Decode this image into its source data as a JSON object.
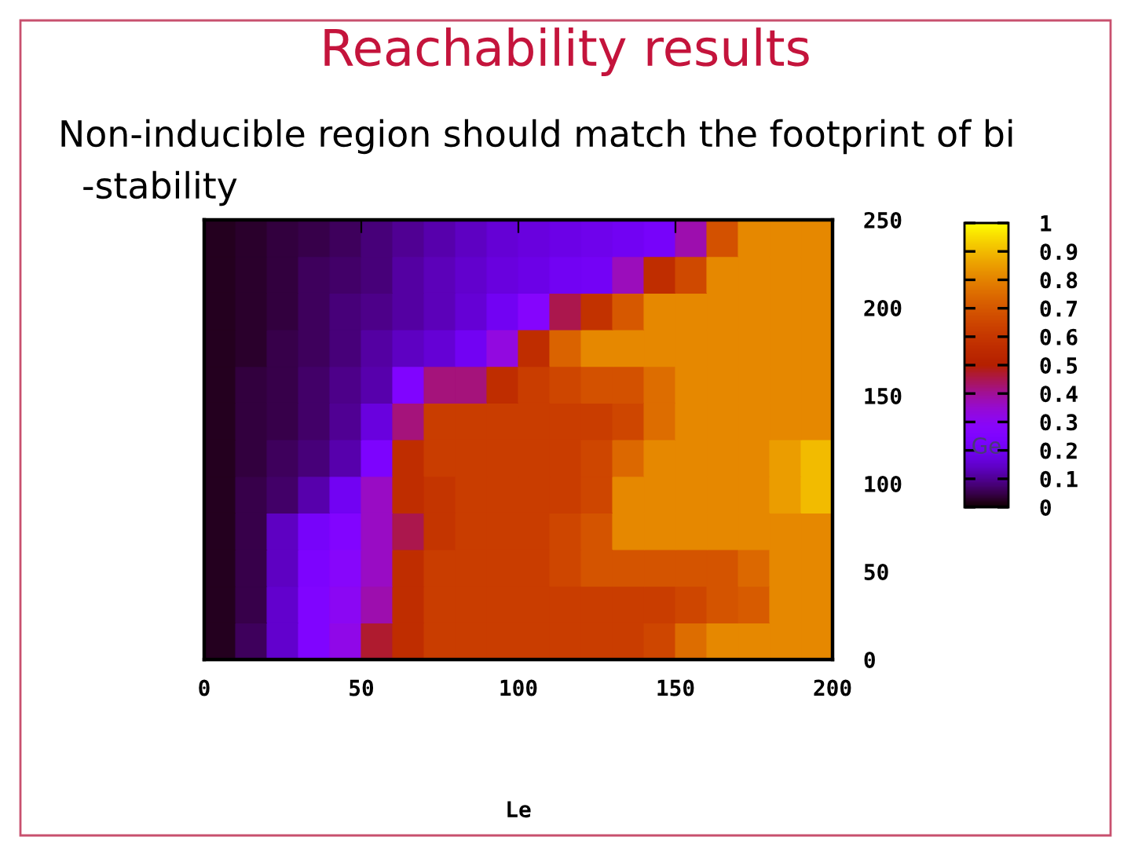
{
  "chart_data": {
    "type": "heatmap",
    "title": "Reachability results",
    "subtitle": "Non-inducible region should match the footprint of bi\n-stability",
    "xlabel": "Le",
    "clabel": "Ge",
    "x": [
      5,
      15,
      25,
      35,
      45,
      55,
      65,
      75,
      85,
      95,
      105,
      115,
      125,
      135,
      145,
      155,
      165,
      175,
      185,
      195
    ],
    "cells": [
      [
        0.02,
        0.03,
        0.04,
        0.05,
        0.06,
        0.08,
        0.1,
        0.12,
        0.14,
        0.16,
        0.17,
        0.18,
        0.19,
        0.2,
        0.22,
        0.38,
        0.68,
        0.81,
        0.81,
        0.81
      ],
      [
        0.02,
        0.03,
        0.04,
        0.06,
        0.07,
        0.08,
        0.11,
        0.13,
        0.15,
        0.17,
        0.18,
        0.2,
        0.21,
        0.37,
        0.56,
        0.66,
        0.81,
        0.81,
        0.81,
        0.81
      ],
      [
        0.02,
        0.03,
        0.04,
        0.06,
        0.08,
        0.09,
        0.11,
        0.13,
        0.16,
        0.2,
        0.27,
        0.45,
        0.58,
        0.7,
        0.81,
        0.81,
        0.81,
        0.81,
        0.81,
        0.81
      ],
      [
        0.02,
        0.03,
        0.05,
        0.06,
        0.08,
        0.11,
        0.14,
        0.16,
        0.2,
        0.33,
        0.56,
        0.73,
        0.81,
        0.81,
        0.81,
        0.81,
        0.81,
        0.81,
        0.81,
        0.81
      ],
      [
        0.02,
        0.04,
        0.05,
        0.07,
        0.09,
        0.12,
        0.25,
        0.42,
        0.42,
        0.56,
        0.62,
        0.65,
        0.68,
        0.68,
        0.75,
        0.81,
        0.81,
        0.81,
        0.81,
        0.81
      ],
      [
        0.02,
        0.04,
        0.05,
        0.07,
        0.1,
        0.17,
        0.42,
        0.62,
        0.62,
        0.62,
        0.62,
        0.62,
        0.62,
        0.65,
        0.75,
        0.81,
        0.81,
        0.81,
        0.81,
        0.81
      ],
      [
        0.02,
        0.04,
        0.06,
        0.08,
        0.12,
        0.24,
        0.56,
        0.62,
        0.62,
        0.62,
        0.62,
        0.62,
        0.65,
        0.74,
        0.81,
        0.81,
        0.81,
        0.81,
        0.85,
        0.9
      ],
      [
        0.02,
        0.05,
        0.07,
        0.12,
        0.2,
        0.36,
        0.56,
        0.59,
        0.62,
        0.62,
        0.62,
        0.62,
        0.65,
        0.81,
        0.81,
        0.81,
        0.81,
        0.81,
        0.85,
        0.9
      ],
      [
        0.02,
        0.05,
        0.14,
        0.22,
        0.26,
        0.36,
        0.45,
        0.59,
        0.62,
        0.62,
        0.62,
        0.65,
        0.69,
        0.81,
        0.81,
        0.81,
        0.81,
        0.81,
        0.81,
        0.81
      ],
      [
        0.02,
        0.05,
        0.14,
        0.24,
        0.28,
        0.36,
        0.56,
        0.62,
        0.62,
        0.62,
        0.62,
        0.65,
        0.69,
        0.69,
        0.69,
        0.69,
        0.69,
        0.74,
        0.81,
        0.81
      ],
      [
        0.02,
        0.05,
        0.15,
        0.25,
        0.3,
        0.38,
        0.56,
        0.62,
        0.62,
        0.62,
        0.62,
        0.62,
        0.62,
        0.62,
        0.62,
        0.65,
        0.69,
        0.71,
        0.81,
        0.81
      ],
      [
        0.02,
        0.06,
        0.15,
        0.25,
        0.32,
        0.47,
        0.56,
        0.62,
        0.62,
        0.62,
        0.62,
        0.62,
        0.62,
        0.62,
        0.65,
        0.75,
        0.81,
        0.81,
        0.81,
        0.81
      ]
    ],
    "xlim": [
      0,
      200
    ],
    "xticks": [
      0,
      50,
      100,
      150,
      200
    ],
    "ylim": [
      0,
      250
    ],
    "yticks": [
      0,
      50,
      100,
      150,
      200,
      250
    ],
    "clim": [
      0,
      1
    ],
    "cticks": [
      0,
      0.1,
      0.2,
      0.3,
      0.4,
      0.5,
      0.6,
      0.7,
      0.8,
      0.9,
      1
    ]
  }
}
